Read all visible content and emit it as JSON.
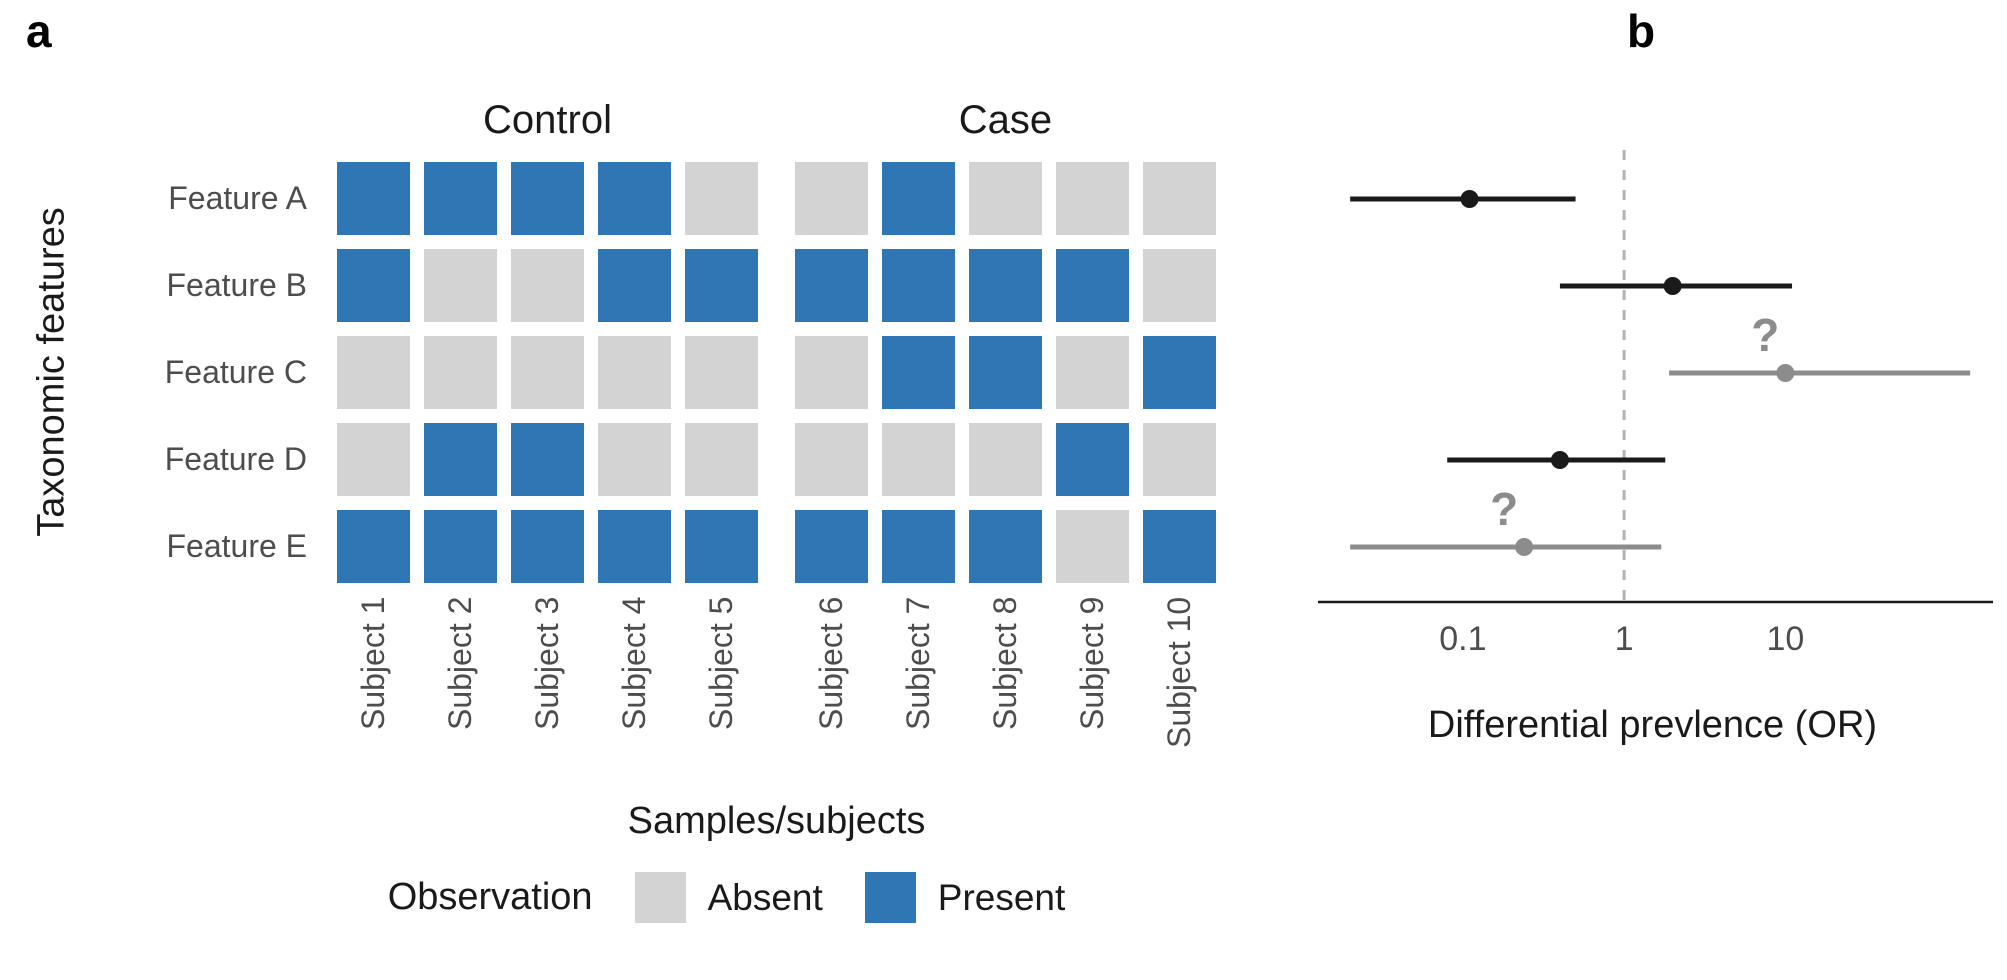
{
  "figure": {
    "background": "#ffffff"
  },
  "panel_a": {
    "label": "a",
    "y_axis_label": "Taxonomic features",
    "x_axis_label": "Samples/subjects",
    "legend": {
      "title": "Observation",
      "items": [
        {
          "label": "Absent",
          "color": "#d3d3d3"
        },
        {
          "label": "Present",
          "color": "#2e77b4"
        }
      ]
    }
  },
  "panel_b": {
    "label": "b",
    "x_axis_label": "Differential prevlence (OR)"
  },
  "chart_data": [
    {
      "type": "heatmap",
      "panel": "a",
      "rows": [
        "Feature A",
        "Feature B",
        "Feature C",
        "Feature D",
        "Feature E"
      ],
      "columns": [
        "Subject 1",
        "Subject 2",
        "Subject 3",
        "Subject 4",
        "Subject 5",
        "Subject 6",
        "Subject 7",
        "Subject 8",
        "Subject 9",
        "Subject 10"
      ],
      "groups": [
        {
          "label": "Control",
          "columns": [
            "Subject 1",
            "Subject 2",
            "Subject 3",
            "Subject 4",
            "Subject 5"
          ]
        },
        {
          "label": "Case",
          "columns": [
            "Subject 6",
            "Subject 7",
            "Subject 8",
            "Subject 9",
            "Subject 10"
          ]
        }
      ],
      "values": [
        [
          1,
          1,
          1,
          1,
          0,
          0,
          1,
          0,
          0,
          0
        ],
        [
          1,
          0,
          0,
          1,
          1,
          1,
          1,
          1,
          1,
          0
        ],
        [
          0,
          0,
          0,
          0,
          0,
          0,
          1,
          1,
          0,
          1
        ],
        [
          0,
          1,
          1,
          0,
          0,
          0,
          0,
          0,
          1,
          0
        ],
        [
          1,
          1,
          1,
          1,
          1,
          1,
          1,
          1,
          0,
          1
        ]
      ],
      "value_labels": {
        "0": "Absent",
        "1": "Present"
      },
      "colors": {
        "absent": "#d3d3d3",
        "present": "#2e77b4"
      },
      "xlabel": "Samples/subjects",
      "ylabel": "Taxonomic features",
      "legend_title": "Observation"
    },
    {
      "type": "scatter",
      "subtype": "forest-plot",
      "panel": "b",
      "xlabel": "Differential prevlence (OR)",
      "x_scale": "log10",
      "x_ticks": [
        0.1,
        1,
        10
      ],
      "x_range": [
        0.015,
        150
      ],
      "reference_line_x": 1,
      "grid": false,
      "points": [
        {
          "label": "Feature A",
          "or": 0.11,
          "ci_low": 0.02,
          "ci_high": 0.5,
          "color": "#1a1a1a",
          "uncertain": false
        },
        {
          "label": "Feature B",
          "or": 2.0,
          "ci_low": 0.4,
          "ci_high": 11,
          "color": "#1a1a1a",
          "uncertain": false
        },
        {
          "label": "Feature C",
          "or": 10,
          "ci_low": 1.9,
          "ci_high": 140,
          "color": "#8c8c8c",
          "uncertain": true
        },
        {
          "label": "Feature D",
          "or": 0.4,
          "ci_low": 0.08,
          "ci_high": 1.8,
          "color": "#1a1a1a",
          "uncertain": false
        },
        {
          "label": "Feature E",
          "or": 0.24,
          "ci_low": 0.02,
          "ci_high": 1.7,
          "color": "#8c8c8c",
          "uncertain": true
        }
      ],
      "uncertain_marker": "?"
    }
  ]
}
